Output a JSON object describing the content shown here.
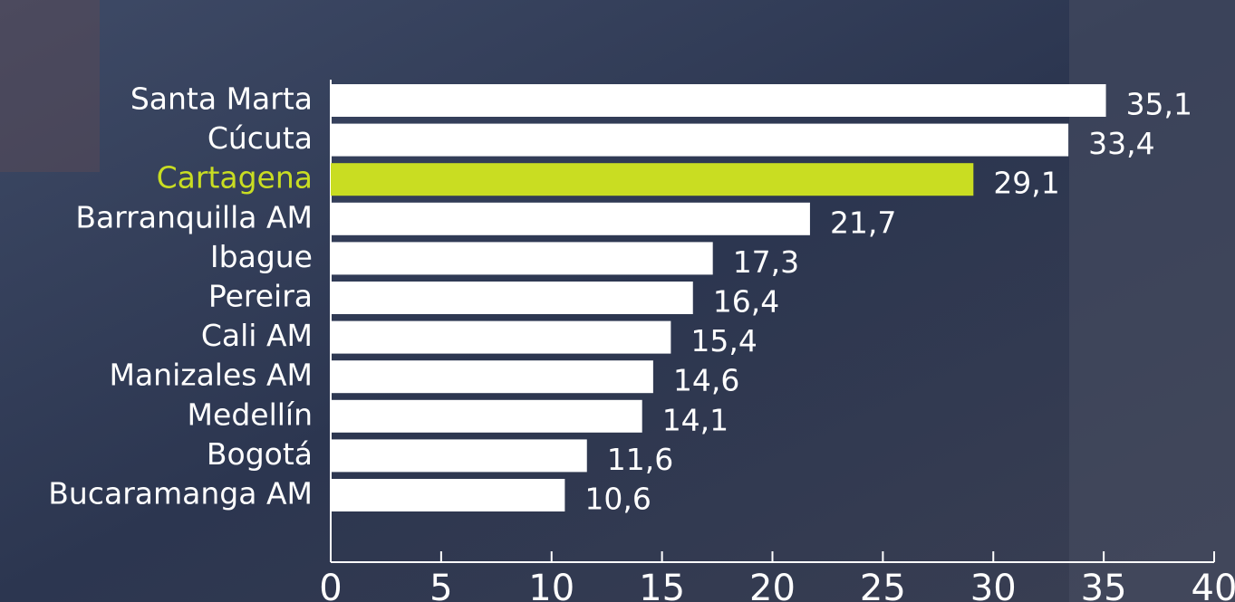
{
  "chart_data": {
    "type": "bar",
    "orientation": "horizontal",
    "categories": [
      "Santa Marta",
      "Cúcuta",
      "Cartagena",
      "Barranquilla AM",
      "Ibague",
      "Pereira",
      "Cali AM",
      "Manizales AM",
      "Medellín",
      "Bogotá",
      "Bucaramanga AM"
    ],
    "values": [
      35.1,
      33.4,
      29.1,
      21.7,
      17.3,
      16.4,
      15.4,
      14.6,
      14.1,
      11.6,
      10.6
    ],
    "value_labels": [
      "35,1",
      "33,4",
      "29,1",
      "21,7",
      "17,3",
      "16,4",
      "15,4",
      "14,6",
      "14,1",
      "11,6",
      "10,6"
    ],
    "colors": [
      "#ffffff",
      "#ffffff",
      "#c9dd22",
      "#ffffff",
      "#ffffff",
      "#ffffff",
      "#ffffff",
      "#ffffff",
      "#ffffff",
      "#ffffff",
      "#ffffff"
    ],
    "xlim": [
      0,
      40
    ],
    "xticks": [
      0,
      5,
      10,
      15,
      20,
      25,
      30,
      35,
      40
    ]
  }
}
